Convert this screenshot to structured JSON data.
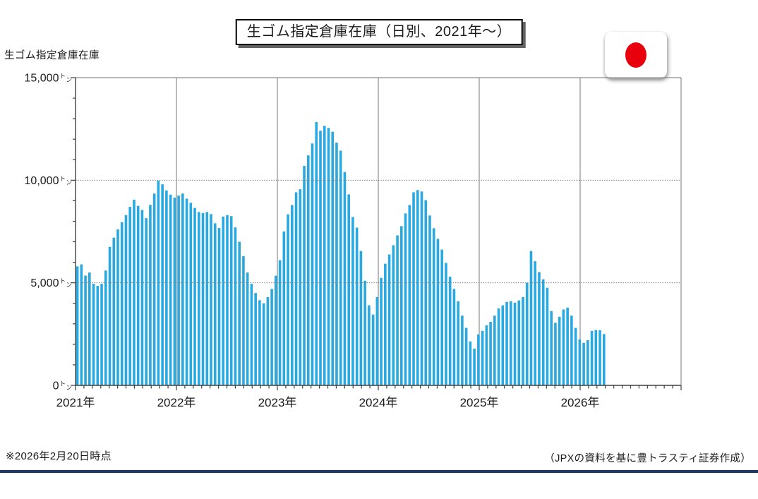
{
  "header": {
    "title": "生ゴム指定倉庫在庫（日別、2021年～）"
  },
  "footer": {
    "as_of": "※2026年2月20日時点",
    "source": "（JPXの資料を基に豊トラスティ証券作成）"
  },
  "colors": {
    "bar": "#29A9E0",
    "grid": "#8C8C8C",
    "dotted_grid": "#7F7F7F",
    "axis": "#404040",
    "text": "#1A1A1A",
    "rule": "#1F3864",
    "flag_red": "#E8000D"
  },
  "chart_data": {
    "type": "bar",
    "title": "生ゴム指定倉庫在庫（日別、2021年～）",
    "ylabel": "生ゴム指定倉庫在庫",
    "unit": "トン",
    "ylim": [
      0,
      15000
    ],
    "ytick_values": [
      0,
      5000,
      10000,
      15000
    ],
    "ytick_labels": [
      "0",
      "5,000",
      "10,000",
      "15,000"
    ],
    "y_minor_interval": 1000,
    "xtick_labels": [
      "2021年",
      "2022年",
      "2023年",
      "2024年",
      "2025年",
      "2026年"
    ],
    "x_axis_start_year": 2021,
    "x_axis_end_year": 2027,
    "gridlines": {
      "horizontal_dotted_at": [
        5000,
        10000
      ],
      "vertical_at_year_boundaries": true
    },
    "legend": "none",
    "series": [
      {
        "name": "生ゴム指定倉庫在庫",
        "values": [
          5800,
          5900,
          5350,
          5500,
          4950,
          4850,
          4950,
          5600,
          6750,
          7200,
          7600,
          7950,
          8300,
          8700,
          9050,
          8750,
          8550,
          8150,
          8800,
          9350,
          9980,
          9800,
          9500,
          9300,
          9150,
          9250,
          9350,
          9100,
          8900,
          8650,
          8450,
          8400,
          8450,
          8350,
          7900,
          7670,
          8230,
          8300,
          8250,
          7700,
          7000,
          6300,
          5500,
          4950,
          4500,
          4150,
          4000,
          4300,
          4700,
          5345,
          6100,
          7500,
          8340,
          8790,
          9410,
          9560,
          10700,
          11210,
          11790,
          12830,
          12410,
          12650,
          12550,
          12360,
          11830,
          11440,
          10400,
          9310,
          8210,
          7690,
          6550,
          5100,
          3900,
          3450,
          4300,
          5240,
          5930,
          6380,
          6830,
          7310,
          7760,
          8380,
          8790,
          9410,
          9520,
          9450,
          9030,
          8280,
          7660,
          7140,
          6620,
          5970,
          5300,
          4700,
          4100,
          3400,
          2800,
          2140,
          1790,
          2480,
          2655,
          2930,
          3100,
          3400,
          3750,
          3900,
          4070,
          4100,
          4030,
          4140,
          4300,
          5000,
          6550,
          6050,
          5520,
          5170,
          4760,
          3620,
          3050,
          3345,
          3700,
          3790,
          3400,
          2800,
          2240,
          2070,
          2200,
          2655,
          2700,
          2690,
          2500
        ]
      }
    ]
  }
}
